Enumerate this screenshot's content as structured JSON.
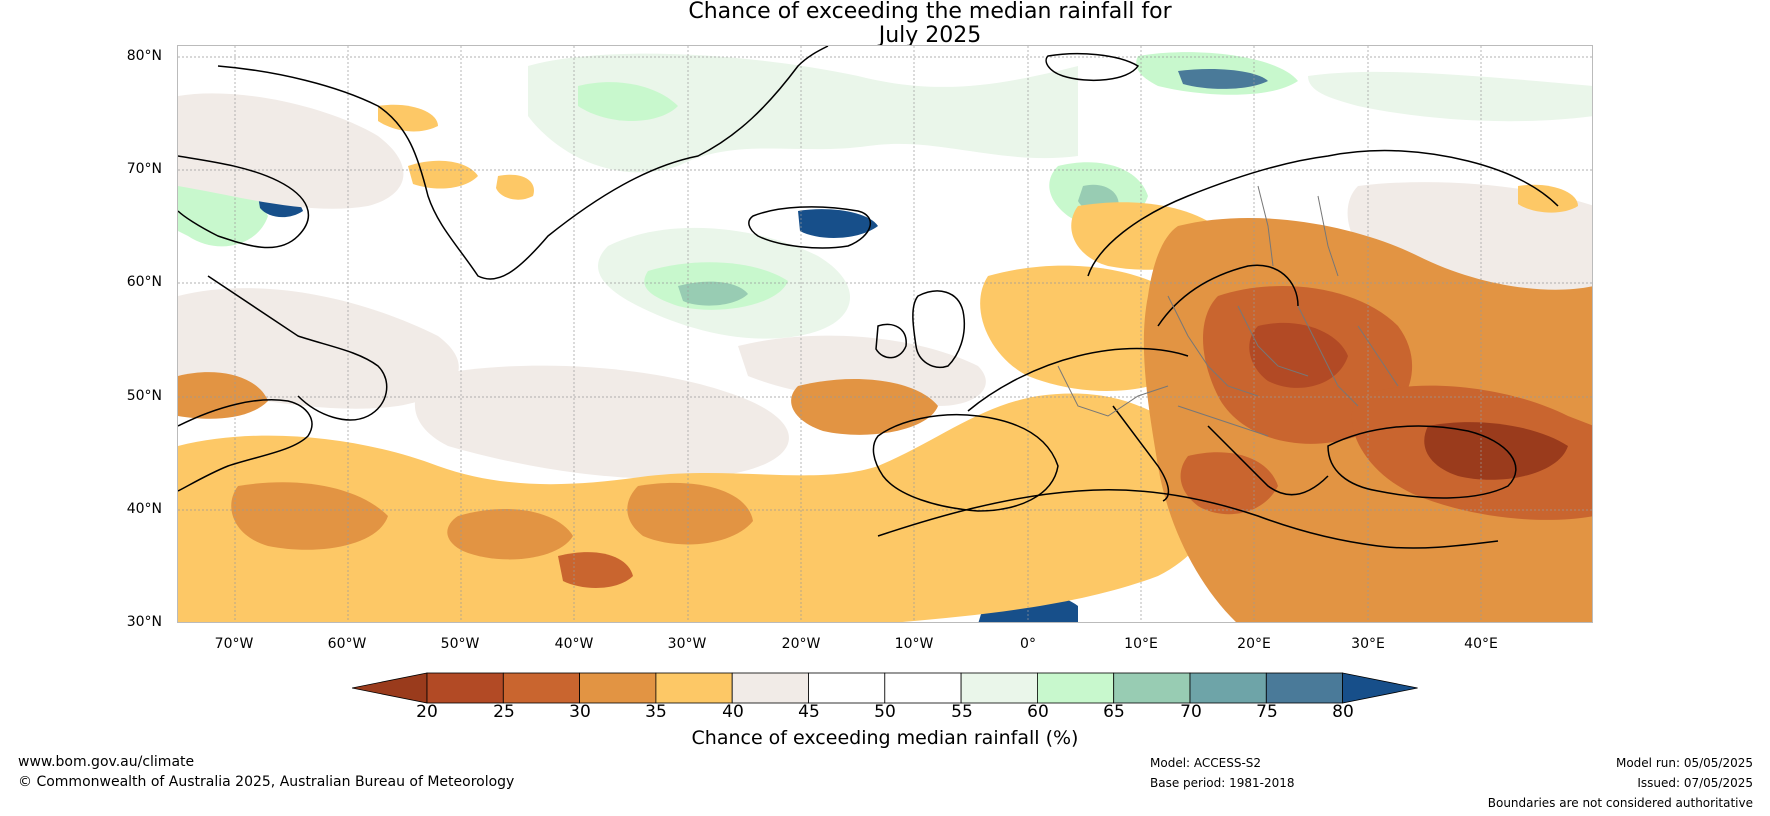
{
  "title": {
    "line1": "Chance of exceeding the median rainfall for",
    "line2": "July 2025"
  },
  "map": {
    "lat_labels": [
      "80°N",
      "70°N",
      "60°N",
      "50°N",
      "40°N",
      "30°N"
    ],
    "lon_labels": [
      "70°W",
      "60°W",
      "50°W",
      "40°W",
      "30°W",
      "20°W",
      "10°W",
      "0°",
      "10°E",
      "20°E",
      "30°E",
      "40°E"
    ],
    "lat_range": [
      30,
      81
    ],
    "lon_range": [
      -75,
      50
    ]
  },
  "colorbar": {
    "ticks": [
      "20",
      "25",
      "30",
      "35",
      "40",
      "45",
      "50",
      "55",
      "60",
      "65",
      "70",
      "75",
      "80"
    ],
    "colors": [
      "#9a3b1c",
      "#b24a25",
      "#c9652f",
      "#e29443",
      "#fdc866",
      "#f1ebe7",
      "#ffffff",
      "#ffffff",
      "#eaf6ea",
      "#c8f8cd",
      "#98ccb3",
      "#6ea4a8",
      "#4a7a99",
      "#174f8a"
    ],
    "label": "Chance of exceeding median rainfall (%)"
  },
  "footer": {
    "website": "www.bom.gov.au/climate",
    "copyright": "© Commonwealth of Australia 2025, Australian Bureau of Meteorology",
    "model": "Model: ACCESS-S2",
    "base_period": "Base period: 1981-2018",
    "model_run": "Model run: 05/05/2025",
    "issued": "Issued: 07/05/2025",
    "boundaries": "Boundaries are not considered authoritative"
  }
}
